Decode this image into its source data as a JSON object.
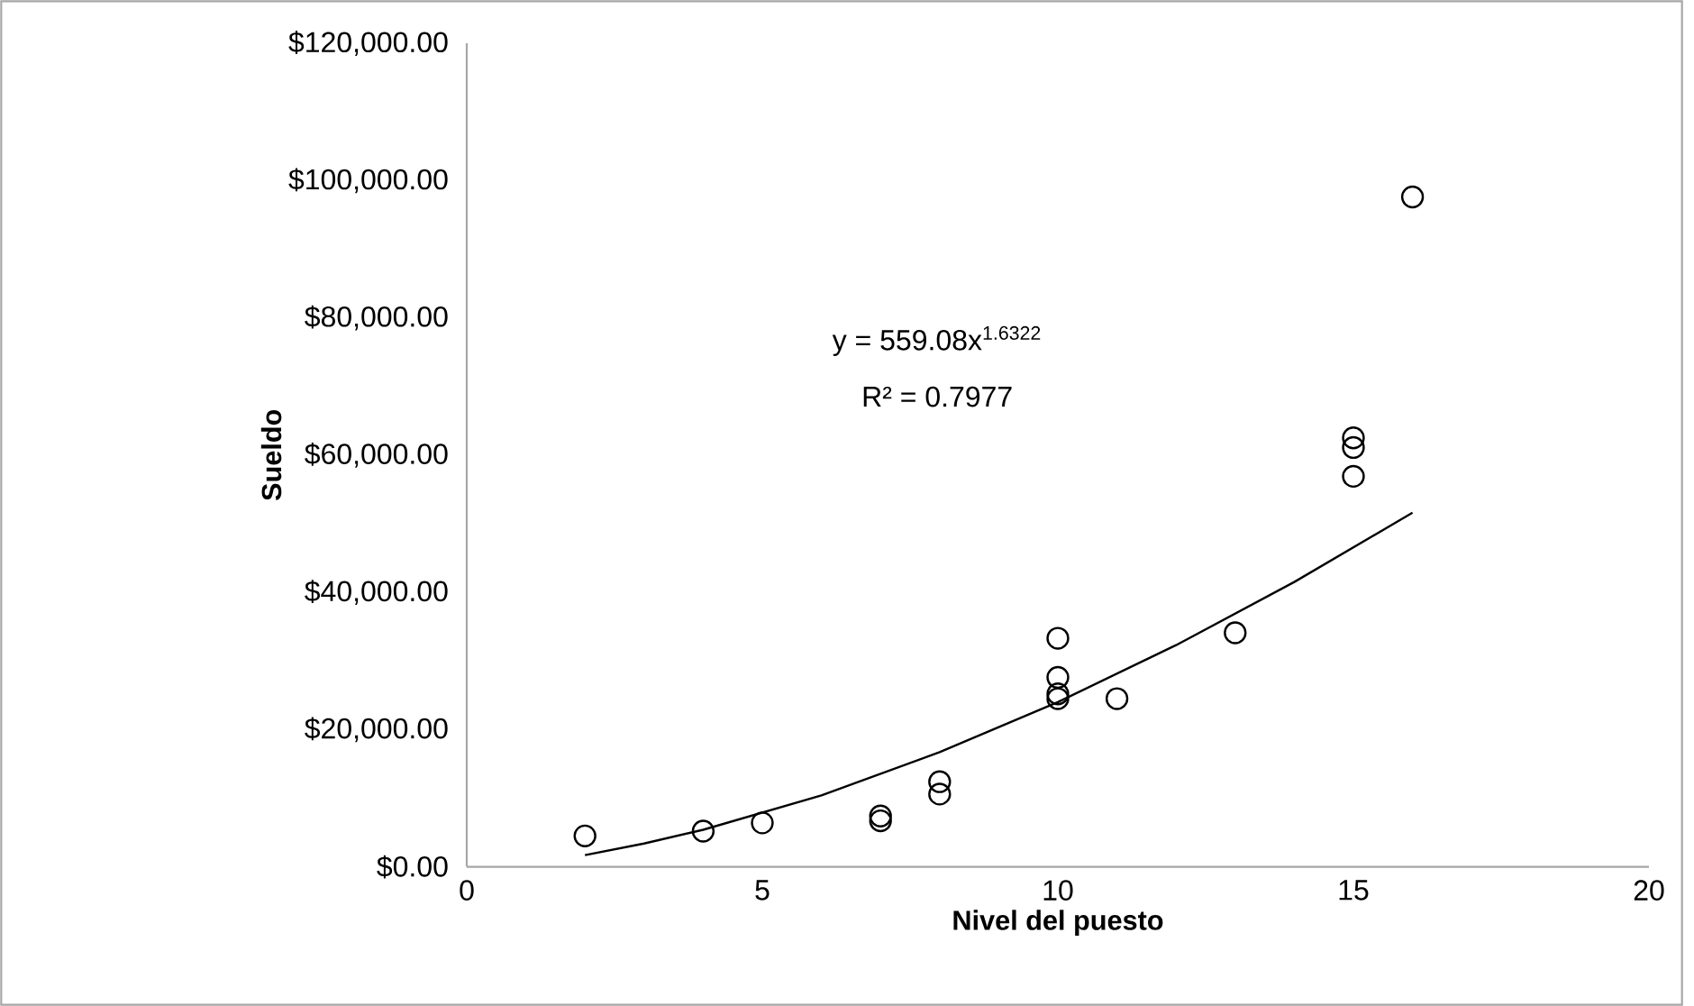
{
  "chart_data": {
    "type": "scatter",
    "xlabel": "Nivel del puesto",
    "ylabel": "Sueldo",
    "xlim": [
      0,
      20
    ],
    "ylim": [
      0,
      120000
    ],
    "xticks": [
      0,
      5,
      10,
      15,
      20
    ],
    "yticks": [
      {
        "value": 0,
        "label": "$0.00"
      },
      {
        "value": 20000,
        "label": "$20,000.00"
      },
      {
        "value": 40000,
        "label": "$40,000.00"
      },
      {
        "value": 60000,
        "label": "$60,000.00"
      },
      {
        "value": 80000,
        "label": "$80,000.00"
      },
      {
        "value": 100000,
        "label": "$100,000.00"
      },
      {
        "value": 120000,
        "label": "$120,000.00"
      }
    ],
    "marker": "circle",
    "series": [
      {
        "type": "scatter",
        "color": "#000000",
        "x": [
          2,
          4,
          5,
          7,
          7,
          8,
          8,
          10,
          10,
          10,
          10,
          11,
          13,
          15,
          15,
          15,
          16
        ],
        "values": [
          4500,
          5200,
          6400,
          7400,
          6700,
          12400,
          10600,
          33300,
          27600,
          25200,
          24500,
          24500,
          34100,
          62500,
          61100,
          56900,
          97600
        ]
      },
      {
        "type": "line",
        "color": "#000000",
        "marker": "none",
        "x": [
          2,
          3,
          4,
          6,
          8,
          10,
          12,
          14,
          16
        ],
        "values": [
          1700,
          3400,
          5400,
          10400,
          16700,
          24000,
          32300,
          41500,
          51600
        ]
      }
    ],
    "annotations": [
      "y = 559.08x$^{1.6322}$",
      "R² = 0.7977"
    ]
  }
}
